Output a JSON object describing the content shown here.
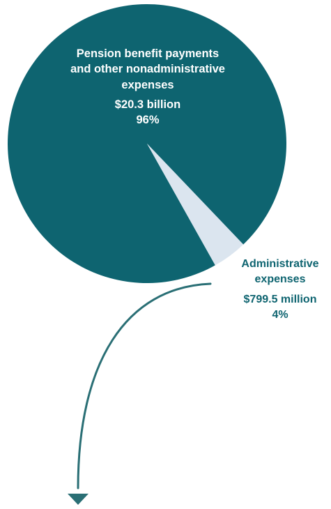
{
  "colors": {
    "pension": "#0e6470",
    "administrative": "#dbe5ef",
    "arrow": "#2a6f75",
    "admin_text": "#0e6470"
  },
  "chart_data": {
    "type": "pie",
    "slices": [
      {
        "label_lines": [
          "Pension benefit payments",
          "and other nonadministrative",
          "expenses"
        ],
        "amount": "$20.3 billion",
        "percent_text": "96%",
        "value": 20.3,
        "percent": 96
      },
      {
        "label_lines": [
          "Administrative",
          "expenses"
        ],
        "amount": "$799.5 million",
        "percent_text": "4%",
        "value": 0.7995,
        "percent": 4
      }
    ]
  }
}
